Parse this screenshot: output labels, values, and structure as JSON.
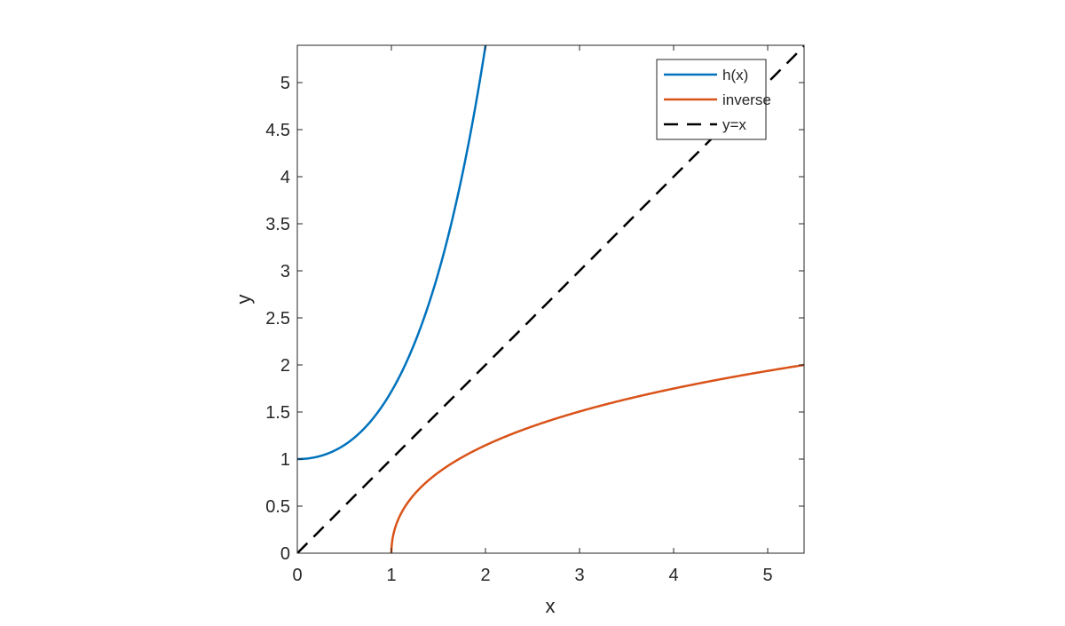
{
  "chart_data": {
    "type": "line",
    "title": "",
    "xlabel": "x",
    "ylabel": "y",
    "xlim": [
      0,
      5.4
    ],
    "ylim": [
      0,
      5.4
    ],
    "grid": false,
    "legend_position": "northeast",
    "xticks": [
      0,
      1,
      2,
      3,
      4,
      5
    ],
    "xtick_labels": [
      "0",
      "1",
      "2",
      "3",
      "4",
      "5"
    ],
    "yticks": [
      0,
      0.5,
      1,
      1.5,
      2,
      2.5,
      3,
      3.5,
      4,
      4.5,
      5
    ],
    "ytick_labels": [
      "0",
      "0.5",
      "1",
      "1.5",
      "2",
      "2.5",
      "3",
      "3.5",
      "4",
      "4.5",
      "5"
    ],
    "series": [
      {
        "name": "h(x)",
        "color": "#0072BD",
        "style": "solid",
        "function": "exp(x) - x",
        "x": [
          0,
          0.25,
          0.5,
          0.75,
          1.0,
          1.25,
          1.5,
          1.75,
          2.0
        ],
        "y": [
          1.0,
          1.034,
          1.149,
          1.367,
          1.718,
          2.24,
          2.982,
          4.005,
          5.389
        ]
      },
      {
        "name": "inverse",
        "color": "#D95319",
        "style": "solid",
        "x": [
          1.0,
          1.034,
          1.149,
          1.367,
          1.718,
          2.24,
          2.982,
          4.005,
          5.389
        ],
        "y": [
          0,
          0.25,
          0.5,
          0.75,
          1.0,
          1.25,
          1.5,
          1.75,
          2.0
        ]
      },
      {
        "name": "y=x",
        "color": "#000000",
        "style": "dashed",
        "x": [
          0,
          5.4
        ],
        "y": [
          0,
          5.4
        ]
      }
    ]
  }
}
